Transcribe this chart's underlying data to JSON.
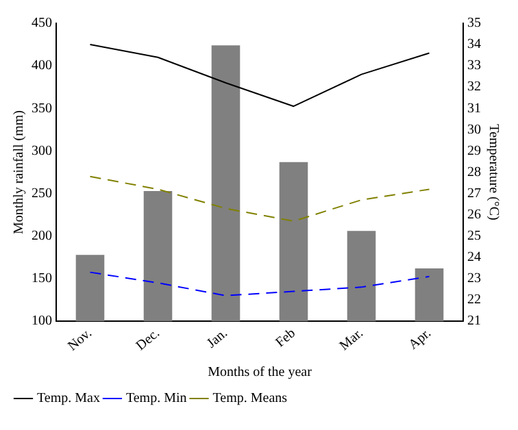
{
  "chart_data": {
    "type": "bar",
    "xlabel": "Months of the year",
    "ylabel": "Monthly rainfall (mm)",
    "y2label": "Temperature (°C)",
    "categories": [
      "Nov.",
      "Dec.",
      "Jan.",
      "Feb",
      "Mar.",
      "Apr."
    ],
    "series": [
      {
        "color": "#808080",
        "values": [
          178,
          253,
          424,
          287,
          206,
          162
        ]
      },
      {
        "type": "line",
        "name": "Temp. Max",
        "color": "#000000",
        "axis": "y2",
        "line_style": "solid",
        "values": [
          34.0,
          33.4,
          32.2,
          31.1,
          32.6,
          33.6
        ]
      },
      {
        "type": "line",
        "name": "Temp. Min",
        "color": "#0000ff",
        "axis": "y2",
        "line_style": "dashed",
        "values": [
          23.3,
          22.8,
          22.2,
          22.4,
          22.6,
          23.1
        ]
      },
      {
        "type": "line",
        "name": "Temp. Means",
        "color": "#808000",
        "axis": "y2",
        "line_style": "dashed",
        "values": [
          27.8,
          27.2,
          26.3,
          25.7,
          26.7,
          27.2
        ]
      }
    ],
    "ylim": [
      100,
      450
    ],
    "yticks": [
      100,
      150,
      200,
      250,
      300,
      350,
      400,
      450
    ],
    "y2lim": [
      21,
      35
    ],
    "y2ticks": [
      21,
      22,
      23,
      24,
      25,
      26,
      27,
      28,
      29,
      30,
      31,
      32,
      33,
      34,
      35
    ],
    "grid": false,
    "legend": "bottom left",
    "marker": "none"
  }
}
